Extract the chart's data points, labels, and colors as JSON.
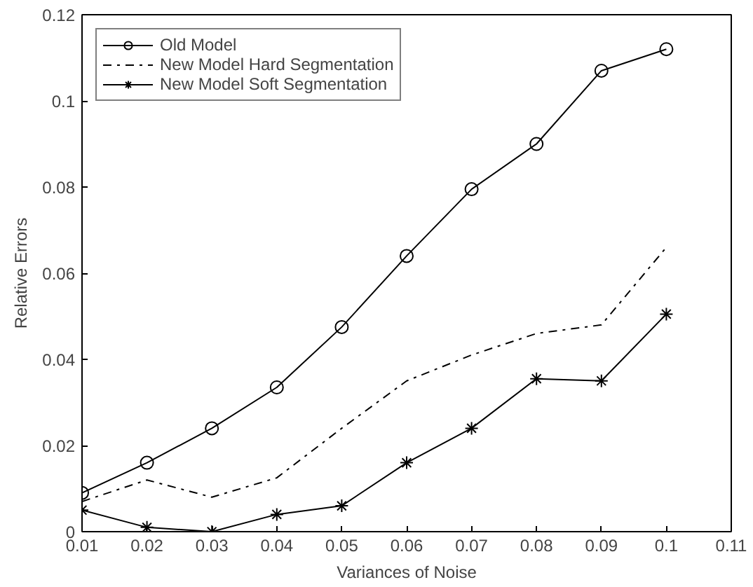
{
  "chart_data": {
    "type": "line",
    "xlabel": "Variances of Noise",
    "ylabel": "Relative Errors",
    "x": [
      0.01,
      0.02,
      0.03,
      0.04,
      0.05,
      0.06,
      0.07,
      0.08,
      0.09,
      0.1
    ],
    "series": [
      {
        "name": "Old Model",
        "color": "#000000",
        "marker": "circle",
        "line_style": "solid",
        "values": [
          0.009,
          0.016,
          0.024,
          0.0335,
          0.0475,
          0.064,
          0.0795,
          0.09,
          0.107,
          0.112
        ]
      },
      {
        "name": "New Model Hard Segmentation",
        "color": "#000000",
        "marker": "none",
        "line_style": "dashdot",
        "values": [
          0.007,
          0.012,
          0.008,
          0.0125,
          0.024,
          0.035,
          0.041,
          0.046,
          0.048,
          0.066
        ]
      },
      {
        "name": "New Model Soft Segmentation",
        "color": "#000000",
        "marker": "cross",
        "line_style": "solid",
        "values": [
          0.005,
          0.001,
          0.0,
          0.004,
          0.006,
          0.016,
          0.024,
          0.0355,
          0.035,
          0.0505
        ]
      }
    ],
    "xlim": [
      0.01,
      0.11
    ],
    "ylim": [
      0,
      0.12
    ],
    "xticks": [
      0.01,
      0.02,
      0.03,
      0.04,
      0.05,
      0.06,
      0.07,
      0.08,
      0.09,
      0.1,
      0.11
    ],
    "yticks": [
      0,
      0.02,
      0.04,
      0.06,
      0.08,
      0.1,
      0.12
    ],
    "grid": false,
    "legend": "top left"
  }
}
